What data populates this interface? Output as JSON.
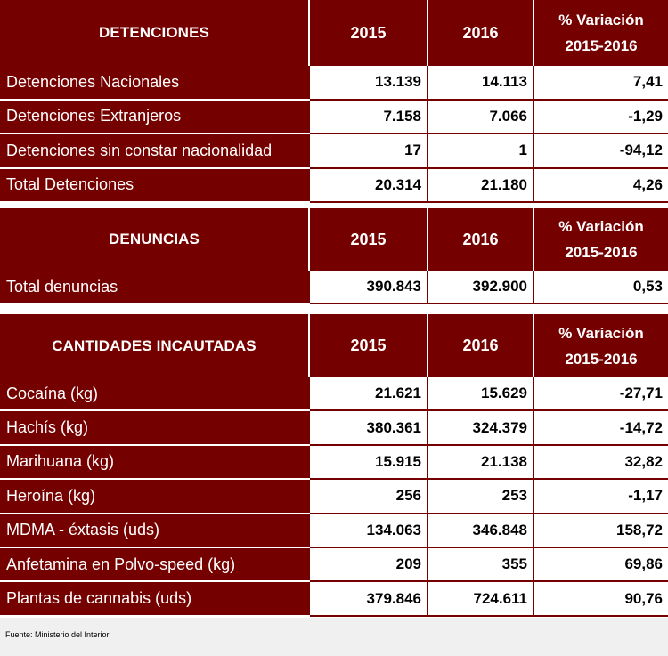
{
  "detenciones": {
    "header": {
      "title": "DETENCIONES",
      "y1": "2015",
      "y2": "2016",
      "var_line1": "% Variación",
      "var_line2": "2015-2016"
    },
    "rows": [
      {
        "label": "Detenciones Nacionales",
        "v2015": "13.139",
        "v2016": "14.113",
        "var": "7,41"
      },
      {
        "label": "Detenciones Extranjeros",
        "v2015": "7.158",
        "v2016": "7.066",
        "var": "-1,29"
      },
      {
        "label": "Detenciones sin constar nacionalidad",
        "v2015": "17",
        "v2016": "1",
        "var": "-94,12"
      },
      {
        "label": "Total Detenciones",
        "v2015": "20.314",
        "v2016": "21.180",
        "var": "4,26"
      }
    ]
  },
  "denuncias": {
    "header": {
      "title": "DENUNCIAS",
      "y1": "2015",
      "y2": "2016",
      "var_line1": "% Variación",
      "var_line2": "2015-2016"
    },
    "rows": [
      {
        "label": "Total denuncias",
        "v2015": "390.843",
        "v2016": "392.900",
        "var": "0,53"
      }
    ]
  },
  "cantidades": {
    "header": {
      "title": "CANTIDADES INCAUTADAS",
      "y1": "2015",
      "y2": "2016",
      "var_line1": "% Variación",
      "var_line2": "2015-2016"
    },
    "rows": [
      {
        "label": "Cocaína (kg)",
        "v2015": "21.621",
        "v2016": "15.629",
        "var": "-27,71"
      },
      {
        "label": "Hachís (kg)",
        "v2015": "380.361",
        "v2016": "324.379",
        "var": "-14,72"
      },
      {
        "label": "Marihuana (kg)",
        "v2015": "15.915",
        "v2016": "21.138",
        "var": "32,82"
      },
      {
        "label": "Heroína (kg)",
        "v2015": "256",
        "v2016": "253",
        "var": "-1,17"
      },
      {
        "label": "MDMA - éxtasis (uds)",
        "v2015": "134.063",
        "v2016": "346.848",
        "var": "158,72"
      },
      {
        "label": "Anfetamina en Polvo-speed (kg)",
        "v2015": "209",
        "v2016": "355",
        "var": "69,86"
      },
      {
        "label": "Plantas de cannabis (uds)",
        "v2015": "379.846",
        "v2016": "724.611",
        "var": "90,76"
      }
    ]
  },
  "footer": {
    "source": "Fuente: Ministerio del Interior"
  },
  "colors": {
    "header_bg": "#750000",
    "header_text": "#ffffff",
    "cell_bg": "#ffffff",
    "footer_bg": "#f0f0f0"
  }
}
